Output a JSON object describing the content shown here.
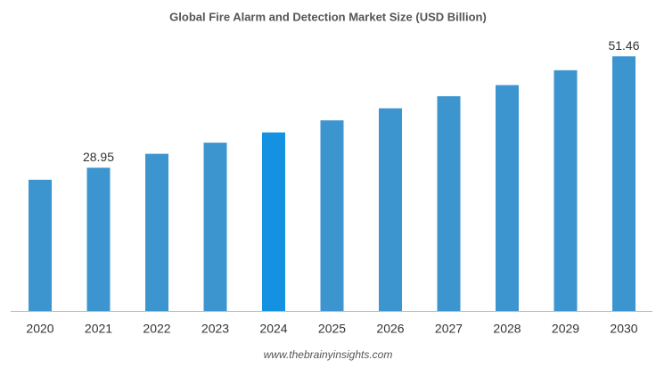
{
  "chart_data": {
    "type": "bar",
    "title": "Global Fire Alarm and Detection Market Size (USD Billion)",
    "categories": [
      "2020",
      "2021",
      "2022",
      "2023",
      "2024",
      "2025",
      "2026",
      "2027",
      "2028",
      "2029",
      "2030"
    ],
    "values": [
      26.51,
      28.95,
      31.76,
      34.01,
      36.08,
      38.52,
      40.96,
      43.4,
      45.65,
      48.65,
      51.46
    ],
    "value_labels": [
      null,
      "28.95",
      null,
      null,
      null,
      null,
      null,
      null,
      null,
      null,
      "51.46"
    ],
    "colors": [
      "#3d95d0",
      "#3d95d0",
      "#3d95d0",
      "#3d95d0",
      "#1591e2",
      "#3d95d0",
      "#3d95d0",
      "#3d95d0",
      "#3d95d0",
      "#3d95d0",
      "#3d95d0"
    ],
    "ylim": [
      0,
      56
    ],
    "source": "www.thebrainyinsights.com"
  }
}
